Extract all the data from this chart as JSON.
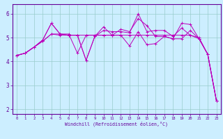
{
  "xlabel": "Windchill (Refroidissement éolien,°C)",
  "bg_color": "#cceeff",
  "plot_bg_color": "#cceeff",
  "line_color": "#bb00bb",
  "grid_color": "#99cccc",
  "spine_color": "#660099",
  "x_ticks": [
    0,
    1,
    2,
    3,
    4,
    5,
    6,
    7,
    8,
    9,
    10,
    11,
    12,
    13,
    14,
    15,
    16,
    17,
    18,
    19,
    20,
    21,
    22,
    23
  ],
  "y_ticks": [
    2,
    3,
    4,
    5,
    6
  ],
  "xlim": [
    -0.5,
    23.5
  ],
  "ylim": [
    1.8,
    6.4
  ],
  "lines": [
    [
      4.25,
      4.35,
      4.6,
      4.9,
      5.6,
      5.15,
      5.1,
      5.1,
      4.05,
      5.05,
      5.3,
      5.25,
      5.25,
      5.2,
      6.0,
      5.25,
      5.3,
      5.3,
      5.05,
      5.4,
      5.1,
      4.95,
      4.3,
      2.35
    ],
    [
      4.25,
      4.35,
      4.6,
      4.9,
      5.6,
      5.15,
      5.1,
      5.1,
      4.05,
      5.05,
      5.45,
      5.1,
      5.35,
      5.25,
      5.8,
      5.5,
      5.05,
      5.05,
      4.95,
      5.6,
      5.55,
      4.95,
      4.3,
      2.35
    ],
    [
      4.25,
      4.35,
      4.6,
      4.85,
      5.15,
      5.1,
      5.1,
      5.1,
      5.1,
      5.1,
      5.1,
      5.1,
      5.1,
      5.1,
      5.1,
      5.1,
      5.1,
      5.1,
      5.1,
      5.1,
      5.1,
      5.0,
      4.3,
      2.35
    ],
    [
      4.25,
      4.35,
      4.6,
      4.85,
      5.15,
      5.15,
      5.15,
      4.35,
      5.1,
      5.1,
      5.1,
      5.1,
      5.1,
      4.65,
      5.25,
      4.7,
      4.75,
      5.05,
      4.95,
      4.95,
      5.3,
      4.95,
      4.3,
      2.35
    ]
  ]
}
